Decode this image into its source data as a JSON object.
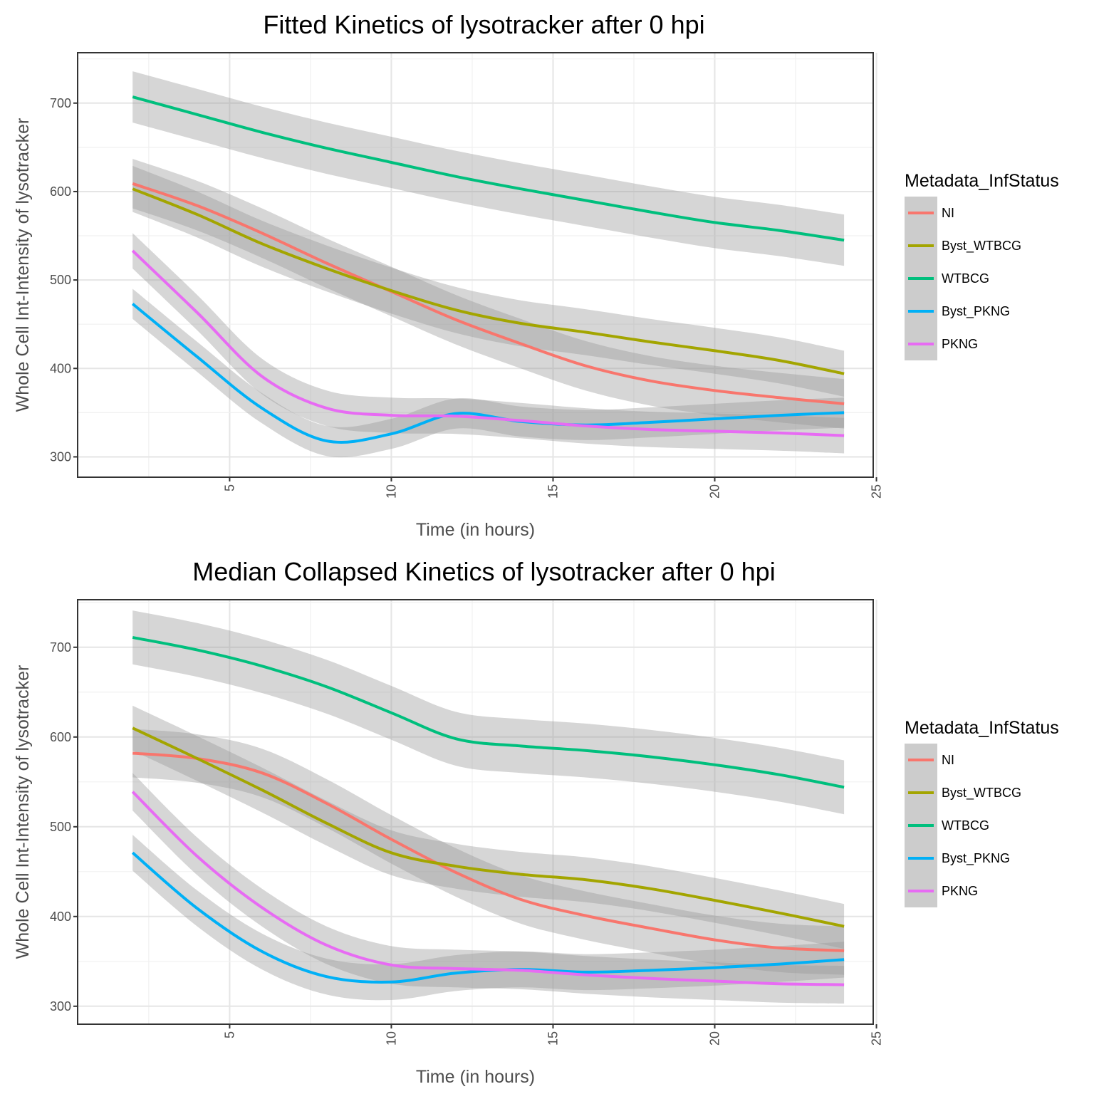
{
  "chart_data": [
    {
      "type": "line",
      "title": "Fitted Kinetics of lysotracker after 0 hpi",
      "xlabel": "Time (in hours)",
      "ylabel": "Whole Cell Int-Intensity of lysotracker",
      "xlim": [
        0.3,
        24.9
      ],
      "ylim": [
        277,
        757
      ],
      "x_ticks": [
        "5",
        "10",
        "15",
        "20",
        "25"
      ],
      "y_ticks": [
        "300",
        "400",
        "500",
        "600",
        "700"
      ],
      "grid": true,
      "confidence_band": true,
      "legend": {
        "title": "Metadata_InfStatus",
        "position": "right"
      },
      "x": [
        2,
        4,
        6,
        8,
        10,
        12,
        14,
        16,
        18,
        20,
        22,
        24
      ],
      "series": [
        {
          "name": "NI",
          "color": "#F8766D",
          "values": [
            609,
            584,
            553,
            519,
            487,
            455,
            428,
            403,
            386,
            375,
            367,
            360
          ],
          "band": 28
        },
        {
          "name": "Byst_WTBCG",
          "color": "#A3A500",
          "values": [
            603,
            574,
            541,
            513,
            488,
            466,
            451,
            441,
            430,
            420,
            409,
            394
          ],
          "band": 26
        },
        {
          "name": "WTBCG",
          "color": "#00BF7D",
          "values": [
            707,
            687,
            667,
            649,
            633,
            617,
            603,
            590,
            577,
            565,
            556,
            545
          ],
          "band": 29
        },
        {
          "name": "Byst_PKNG",
          "color": "#00B0F6",
          "values": [
            473,
            413,
            355,
            318,
            326,
            349,
            340,
            336,
            339,
            343,
            347,
            350
          ],
          "band": 17
        },
        {
          "name": "PKNG",
          "color": "#E76BF3",
          "values": [
            533,
            463,
            391,
            355,
            347,
            346,
            341,
            335,
            331,
            329,
            327,
            324
          ],
          "band": 20
        }
      ]
    },
    {
      "type": "line",
      "title": "Median Collapsed Kinetics of lysotracker after 0 hpi",
      "xlabel": "Time (in hours)",
      "ylabel": "Whole Cell Int-Intensity of lysotracker",
      "xlim": [
        0.3,
        24.9
      ],
      "ylim": [
        280,
        753
      ],
      "x_ticks": [
        "5",
        "10",
        "15",
        "20",
        "25"
      ],
      "y_ticks": [
        "300",
        "400",
        "500",
        "600",
        "700"
      ],
      "grid": true,
      "confidence_band": true,
      "legend": {
        "title": "Metadata_InfStatus",
        "position": "right"
      },
      "x": [
        2,
        4,
        6,
        8,
        10,
        12,
        14,
        16,
        18,
        20,
        22,
        24
      ],
      "series": [
        {
          "name": "NI",
          "color": "#F8766D",
          "values": [
            582,
            576,
            560,
            526,
            486,
            449,
            419,
            401,
            387,
            374,
            365,
            362
          ],
          "band": 27
        },
        {
          "name": "Byst_WTBCG",
          "color": "#A3A500",
          "values": [
            610,
            576,
            541,
            504,
            471,
            456,
            447,
            441,
            431,
            418,
            404,
            389
          ],
          "band": 25
        },
        {
          "name": "WTBCG",
          "color": "#00BF7D",
          "values": [
            711,
            697,
            679,
            656,
            627,
            598,
            590,
            585,
            578,
            569,
            558,
            544
          ],
          "band": 30
        },
        {
          "name": "Byst_PKNG",
          "color": "#00B0F6",
          "values": [
            471,
            409,
            361,
            333,
            327,
            337,
            341,
            338,
            340,
            343,
            347,
            352
          ],
          "band": 20
        },
        {
          "name": "PKNG",
          "color": "#E76BF3",
          "values": [
            539,
            467,
            410,
            368,
            346,
            342,
            340,
            335,
            331,
            328,
            325,
            324
          ],
          "band": 21
        }
      ]
    }
  ]
}
